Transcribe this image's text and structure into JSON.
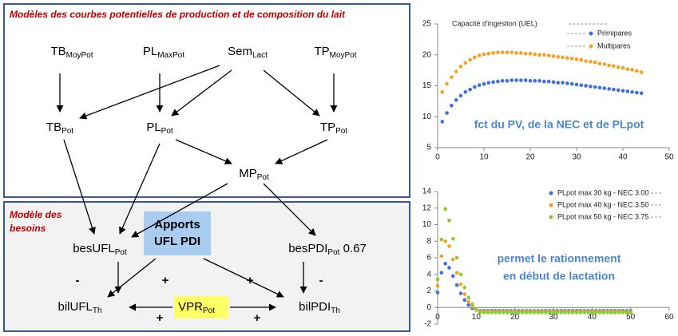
{
  "diagram": {
    "top_title": "Modèles des courbes potentielles de production et de composition du lait",
    "bottom_title": [
      "Modèle des",
      "besoins"
    ],
    "nodes": [
      {
        "base": "TB",
        "sub": "MoyPot"
      },
      {
        "base": "PL",
        "sub": "MaxPot"
      },
      {
        "base": "Sem",
        "sub": "Lact"
      },
      {
        "base": "TP",
        "sub": "MoyPot"
      },
      {
        "base": "TB",
        "sub": "Pot"
      },
      {
        "base": "PL",
        "sub": "Pot"
      },
      {
        "base": "TP",
        "sub": "Pot"
      },
      {
        "base": "MP",
        "sub": "Pot"
      },
      {
        "base": "besUFL",
        "sub": "Pot"
      },
      {
        "base": "besPDI",
        "sub": "Pot",
        "suffix": " 0.67"
      },
      {
        "base": "bilUFL",
        "sub": "Th"
      },
      {
        "base": "bilPDI",
        "sub": "Th"
      },
      {
        "base": "VPR",
        "sub": "Pot"
      }
    ],
    "apports": [
      "Apports",
      "UFL PDI"
    ],
    "signs": [
      "-",
      "+",
      "+",
      "-",
      "+",
      "+"
    ]
  },
  "chart_data": [
    {
      "type": "scatter",
      "title": "Capacité d'ingestion (UEL)",
      "annotation": [
        "fct du PV, de la NEC et de PLpot"
      ],
      "x": [
        1,
        2,
        3,
        4,
        5,
        6,
        7,
        8,
        9,
        10,
        11,
        12,
        13,
        14,
        15,
        16,
        17,
        18,
        19,
        20,
        21,
        22,
        23,
        24,
        25,
        26,
        27,
        28,
        29,
        30,
        31,
        32,
        33,
        34,
        35,
        36,
        37,
        38,
        39,
        40,
        41,
        42,
        43,
        44
      ],
      "series": [
        {
          "name": "Primipares",
          "color": "#3d6fe0",
          "values": [
            9.2,
            10.6,
            11.8,
            12.7,
            13.4,
            14.0,
            14.4,
            14.8,
            15.1,
            15.3,
            15.5,
            15.6,
            15.7,
            15.8,
            15.8,
            15.9,
            15.9,
            15.9,
            15.9,
            15.8,
            15.8,
            15.8,
            15.7,
            15.7,
            15.6,
            15.5,
            15.5,
            15.4,
            15.3,
            15.2,
            15.1,
            15.0,
            14.9,
            14.8,
            14.7,
            14.6,
            14.5,
            14.4,
            14.3,
            14.2,
            14.1,
            14.0,
            13.9,
            13.8
          ]
        },
        {
          "name": "Multipares",
          "color": "#f5a020",
          "values": [
            14.0,
            15.3,
            16.4,
            17.3,
            18.1,
            18.7,
            19.2,
            19.6,
            19.9,
            20.1,
            20.2,
            20.3,
            20.4,
            20.4,
            20.4,
            20.4,
            20.3,
            20.3,
            20.2,
            20.2,
            20.1,
            20.0,
            20.0,
            19.9,
            19.8,
            19.7,
            19.6,
            19.5,
            19.4,
            19.3,
            19.2,
            19.0,
            18.9,
            18.8,
            18.6,
            18.5,
            18.3,
            18.2,
            18.0,
            17.9,
            17.7,
            17.6,
            17.4,
            17.2
          ]
        }
      ],
      "xlim": [
        0,
        50
      ],
      "xticks": [
        0,
        10,
        20,
        30,
        40,
        50
      ],
      "ylim": [
        5,
        25
      ],
      "yticks": [
        5,
        10,
        15,
        20,
        25
      ]
    },
    {
      "type": "scatter",
      "annotation": [
        "permet le rationnement",
        "en début de lactation"
      ],
      "x": [
        0,
        1,
        2,
        3,
        4,
        5,
        6,
        7,
        8,
        9,
        10,
        11,
        12,
        13,
        14,
        15,
        16,
        17,
        18,
        19,
        20,
        21,
        22,
        23,
        24,
        25,
        26,
        27,
        28,
        29,
        30,
        31,
        32,
        33,
        34,
        35,
        36,
        37,
        38,
        39,
        40,
        41,
        42,
        43,
        44,
        45,
        46,
        47,
        48,
        49,
        50
      ],
      "series": [
        {
          "name": "PLpot max 30 kg - NEC 3.00",
          "color": "#3d6fe0",
          "values": [
            1.8,
            4.2,
            5.3,
            4.8,
            3.8,
            2.7,
            1.7,
            0.9,
            0.3,
            -0.1,
            -0.3,
            -0.4,
            -0.4,
            -0.4,
            -0.4,
            -0.4,
            -0.4,
            -0.4,
            -0.4,
            -0.4,
            -0.4,
            -0.4,
            -0.4,
            -0.4,
            -0.4,
            -0.4,
            -0.4,
            -0.4,
            -0.4,
            -0.4,
            -0.4,
            -0.4,
            -0.4,
            -0.4,
            -0.4,
            -0.4,
            -0.4,
            -0.4,
            -0.4,
            -0.4,
            -0.4,
            -0.4,
            -0.4,
            -0.4,
            -0.4,
            -0.4,
            -0.4,
            -0.4,
            -0.4,
            -0.4,
            -0.4
          ]
        },
        {
          "name": "PLpot max 40 kg - NEC 3.50",
          "color": "#f5a020",
          "values": [
            2.6,
            6.2,
            8.0,
            7.4,
            5.8,
            4.2,
            2.8,
            1.6,
            0.7,
            0.1,
            -0.3,
            -0.5,
            -0.5,
            -0.5,
            -0.5,
            -0.5,
            -0.5,
            -0.5,
            -0.5,
            -0.5,
            -0.5,
            -0.5,
            -0.5,
            -0.5,
            -0.5,
            -0.5,
            -0.5,
            -0.5,
            -0.5,
            -0.5,
            -0.5,
            -0.5,
            -0.5,
            -0.5,
            -0.5,
            -0.5,
            -0.5,
            -0.5,
            -0.5,
            -0.5,
            -0.5,
            -0.5,
            -0.5,
            -0.5,
            -0.5,
            -0.5,
            -0.5,
            -0.5,
            -0.5,
            -0.5,
            -0.5
          ]
        },
        {
          "name": "PLpot max 50 kg - NEC 3.75",
          "color": "#8ccc2a",
          "values": [
            3.4,
            8.2,
            11.9,
            10.5,
            8.3,
            6.0,
            4.0,
            2.4,
            1.2,
            0.4,
            -0.2,
            -0.6,
            -0.6,
            -0.6,
            -0.6,
            -0.6,
            -0.6,
            -0.6,
            -0.6,
            -0.6,
            -0.6,
            -0.6,
            -0.6,
            -0.6,
            -0.6,
            -0.6,
            -0.6,
            -0.6,
            -0.6,
            -0.6,
            -0.6,
            -0.6,
            -0.6,
            -0.6,
            -0.6,
            -0.6,
            -0.6,
            -0.6,
            -0.6,
            -0.6,
            -0.6,
            -0.6,
            -0.6,
            -0.6,
            -0.6,
            -0.6,
            -0.6,
            -0.6,
            -0.6,
            -0.6,
            -0.6
          ]
        }
      ],
      "xlim": [
        0,
        60
      ],
      "xticks": [
        0,
        10,
        20,
        30,
        40,
        50,
        60
      ],
      "ylim": [
        -2,
        14
      ],
      "yticks": [
        -2,
        0,
        2,
        4,
        6,
        8,
        10,
        12,
        14
      ]
    }
  ]
}
